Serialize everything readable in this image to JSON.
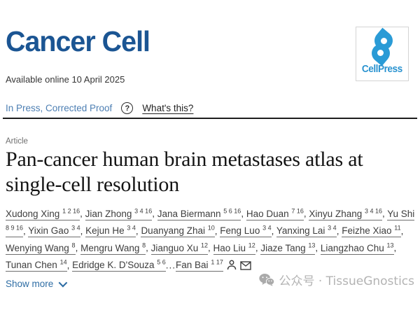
{
  "header": {
    "journal_title": "Cancer Cell",
    "publisher": "CellPress",
    "available_online": "Available online 10 April 2025"
  },
  "status_bar": {
    "status_text": "In Press, Corrected Proof",
    "help_icon_glyph": "?",
    "whats_this_label": "What's this?"
  },
  "article": {
    "type_label": "Article",
    "title": "Pan-cancer human brain metastases atlas at single-cell resolution"
  },
  "authors": {
    "list": [
      {
        "name": "Xudong Xing",
        "sup": "1 2 16"
      },
      {
        "name": "Jian Zhong",
        "sup": "3 4 16"
      },
      {
        "name": "Jana Biermann",
        "sup": "5 6 16"
      },
      {
        "name": "Hao Duan",
        "sup": "7 16"
      },
      {
        "name": "Xinyu Zhang",
        "sup": "3 4 16"
      },
      {
        "name": "Yu Shi",
        "sup": "8 9 16"
      },
      {
        "name": "Yixin Gao",
        "sup": "3 4"
      },
      {
        "name": "Kejun He",
        "sup": "3 4"
      },
      {
        "name": "Duanyang Zhai",
        "sup": "10"
      },
      {
        "name": "Feng Luo",
        "sup": "3 4"
      },
      {
        "name": "Yanxing Lai",
        "sup": "3 4"
      },
      {
        "name": "Feizhe Xiao",
        "sup": "11"
      },
      {
        "name": "Wenying Wang",
        "sup": "8"
      },
      {
        "name": "Mengru Wang",
        "sup": "8"
      },
      {
        "name": "Jianguo Xu",
        "sup": "12"
      },
      {
        "name": "Hao Liu",
        "sup": "12"
      },
      {
        "name": "Jiaze Tang",
        "sup": "13"
      },
      {
        "name": "Liangzhao Chu",
        "sup": "13"
      },
      {
        "name": "Tunan Chen",
        "sup": "14"
      },
      {
        "name": "Edridge K. D'Souza",
        "sup": "5 6"
      }
    ],
    "ellipsis": "...",
    "last_author": {
      "name": "Fan Bai",
      "sup": "1 17"
    },
    "icons": [
      "author-profile-icon",
      "email-icon"
    ]
  },
  "actions": {
    "show_more_label": "Show more"
  },
  "watermark": {
    "text": "公众号 · TissueGnostics"
  },
  "colors": {
    "journal_navy": "#1b5593",
    "cellpress_blue": "#2a9bd6",
    "status_blue": "#4d7fb3",
    "link_blue": "#2e6da4",
    "author_gray": "#3d3d3d",
    "watermark_gray": "#b3b3b3"
  }
}
